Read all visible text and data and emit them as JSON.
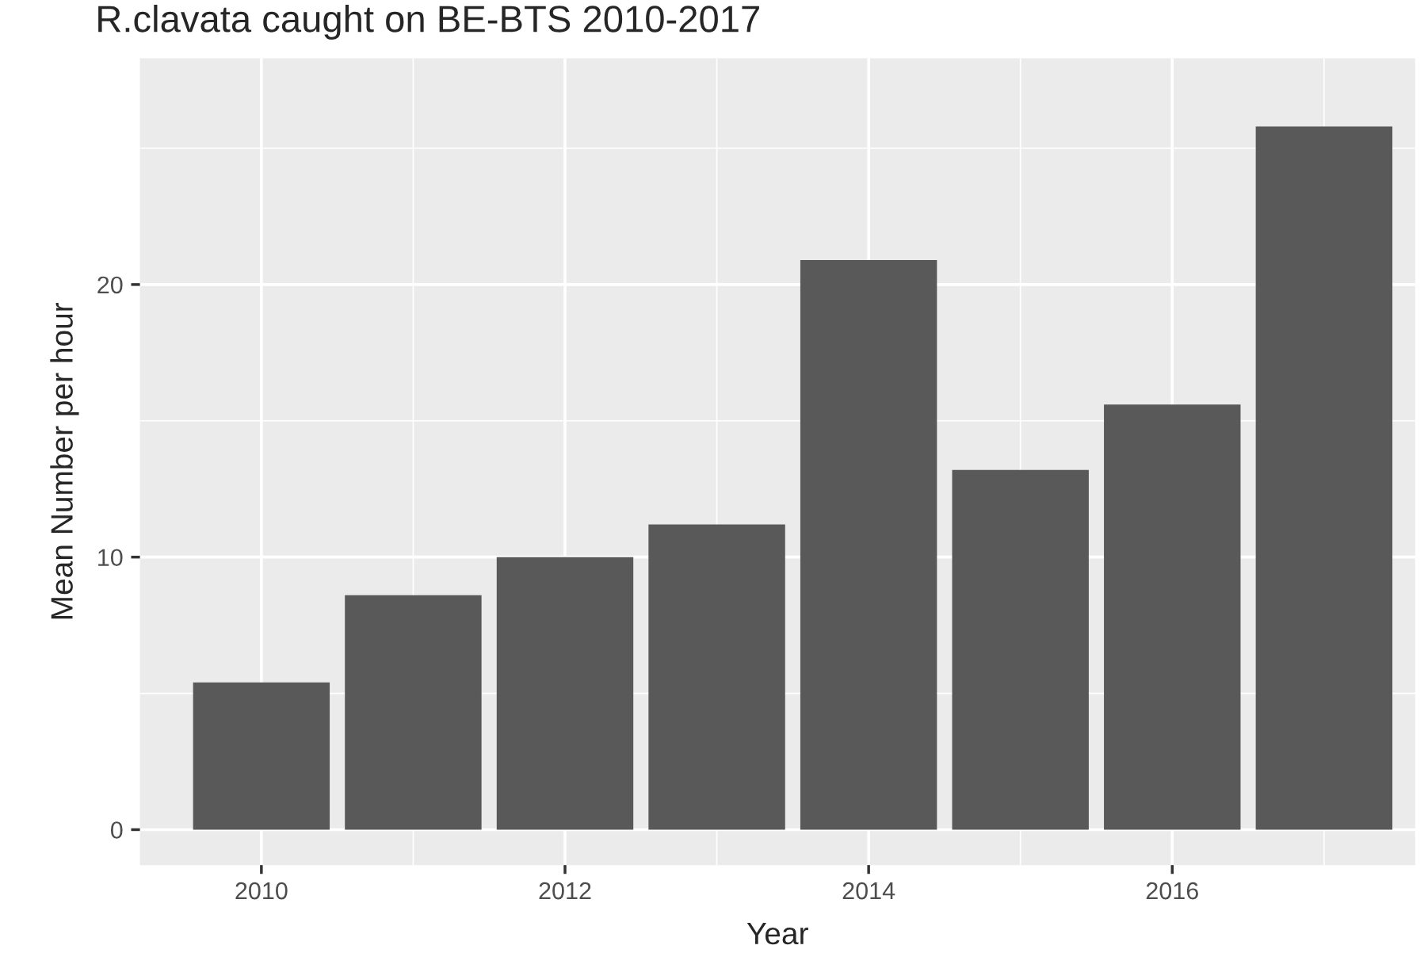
{
  "chart_data": {
    "type": "bar",
    "title": "R.clavata caught on BE-BTS 2010-2017",
    "xlabel": "Year",
    "ylabel": "Mean Number per hour",
    "x": [
      2010,
      2011,
      2012,
      2013,
      2014,
      2015,
      2016,
      2017
    ],
    "series": [
      {
        "color": "#595959",
        "values": [
          5.4,
          8.6,
          10.0,
          11.2,
          20.9,
          13.2,
          15.6,
          25.8
        ]
      }
    ],
    "xlim": [
      2009.2,
      2017.6
    ],
    "xticks": [
      2010,
      2012,
      2014,
      2016
    ],
    "ylim": [
      -1.3,
      28.3
    ],
    "yticks": [
      0,
      10,
      20
    ],
    "grid": true
  }
}
